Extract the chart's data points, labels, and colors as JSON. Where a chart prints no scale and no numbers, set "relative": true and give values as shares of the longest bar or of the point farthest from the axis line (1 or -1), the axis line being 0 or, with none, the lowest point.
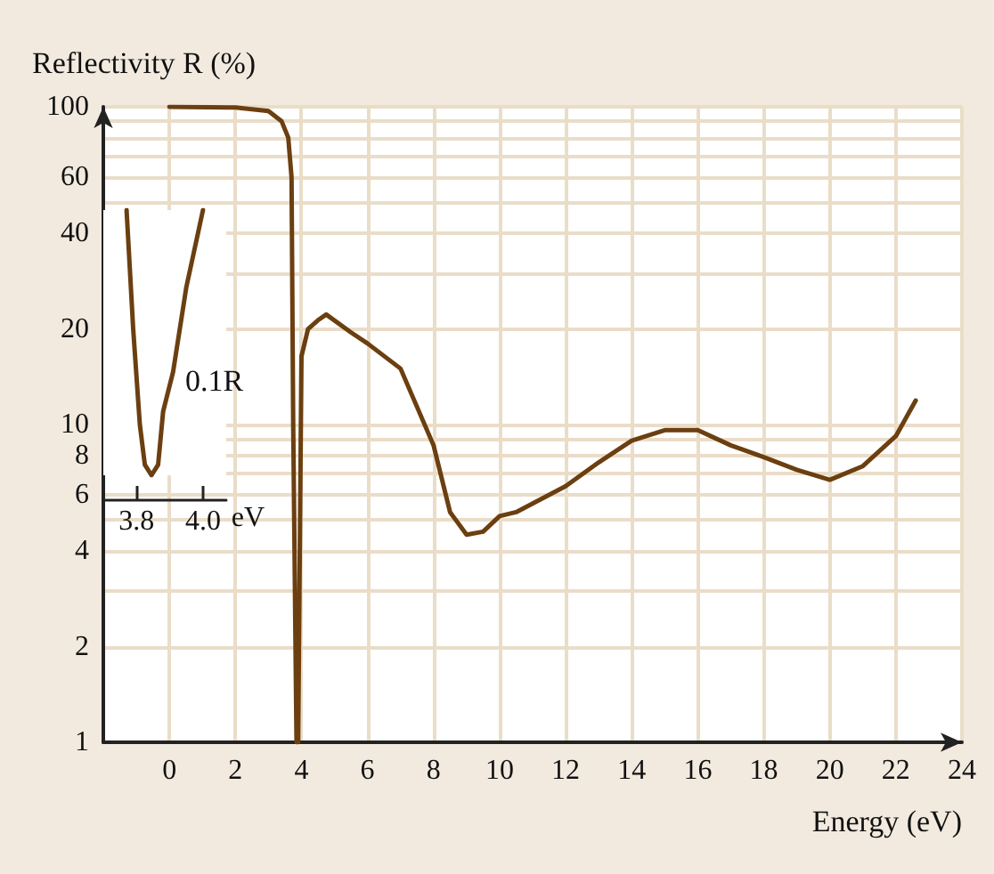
{
  "chart_data": [
    {
      "type": "line",
      "ylabel": "Reflectivity R (%)",
      "xlabel": "Energy (eV)",
      "log": "y",
      "grid": true,
      "marker": "none",
      "line_style": "solid",
      "xlim": [
        -2,
        24
      ],
      "xticks": [
        0,
        2,
        4,
        6,
        8,
        10,
        12,
        14,
        16,
        18,
        20,
        22,
        24
      ],
      "ylim": [
        1,
        100
      ],
      "yticks": [
        1,
        2,
        {
          "value": 3,
          "label": null
        },
        4,
        {
          "value": 5,
          "label": null
        },
        6,
        {
          "value": 7,
          "label": null
        },
        8,
        {
          "value": 9,
          "label": null
        },
        10,
        20,
        {
          "value": 30,
          "label": null
        },
        40,
        {
          "value": 50,
          "label": null
        },
        60,
        {
          "value": 70,
          "label": null
        },
        {
          "value": 80,
          "label": null
        },
        {
          "value": 90,
          "label": null
        },
        100
      ],
      "series": [
        {
          "color": "#6b3f10",
          "x": [
            0,
            2,
            3,
            3.4,
            3.6,
            3.7,
            3.75,
            3.85,
            3.9,
            4.0,
            4.2,
            4.5,
            4.75,
            5.5,
            6,
            7,
            8,
            8.5,
            9,
            9.5,
            10,
            10.5,
            12,
            13,
            14,
            15,
            16,
            17,
            18,
            19,
            20,
            21,
            22,
            22.6
          ],
          "values": [
            100,
            99.5,
            97,
            90,
            80,
            60,
            10,
            1,
            1,
            16.4,
            20,
            21.3,
            22.2,
            19.5,
            18,
            15,
            8.6,
            5.3,
            4.5,
            4.6,
            5.15,
            5.3,
            6.4,
            7.6,
            8.9,
            9.6,
            9.6,
            8.6,
            7.9,
            7.2,
            6.7,
            7.4,
            9.2,
            11.9
          ]
        }
      ]
    },
    {
      "type": "line",
      "xlabel": "eV",
      "relative": true,
      "tick_labels": "x",
      "line_style": "solid",
      "marker": "none",
      "xlim": [
        3.7,
        4.07
      ],
      "xticks": [
        {
          "value": 3.8,
          "label": "3.8"
        },
        {
          "value": 4.0,
          "label": "4.0"
        }
      ],
      "annotations": [
        "0.1R"
      ],
      "series": [
        {
          "color": "#6b3f10",
          "x": [
            3.77,
            3.79,
            3.81,
            3.825,
            3.845,
            3.865,
            3.88,
            3.91,
            3.95,
            4.0
          ],
          "values": [
            1,
            0.55,
            0.19,
            0.04,
            0,
            0.04,
            0.24,
            0.39,
            0.71,
            1
          ]
        }
      ]
    }
  ]
}
